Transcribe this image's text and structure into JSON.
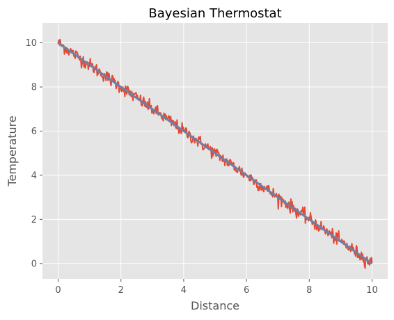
{
  "chart_data": {
    "type": "line",
    "title": "Bayesian Thermostat",
    "xlabel": "Distance",
    "ylabel": "Temperature",
    "xlim": [
      -0.5,
      10.5
    ],
    "ylim": [
      -0.7,
      10.9
    ],
    "x_ticks": [
      0,
      2,
      4,
      6,
      8,
      10
    ],
    "y_ticks": [
      0,
      2,
      4,
      6,
      8,
      10
    ],
    "grid": true,
    "series": [
      {
        "name": "",
        "kind": "noisy",
        "color": "#E24A33",
        "x_range": [
          0,
          10
        ],
        "points": 500,
        "trend": {
          "start": 10,
          "end": 0
        },
        "noise_std": 0.15
      },
      {
        "name": "",
        "kind": "trend",
        "color": "#6F7FA8",
        "x": [
          0,
          10
        ],
        "y": [
          10,
          0
        ]
      }
    ],
    "colors": {
      "plot_background": "#E5E5E5",
      "grid": "#FFFFFF"
    }
  }
}
